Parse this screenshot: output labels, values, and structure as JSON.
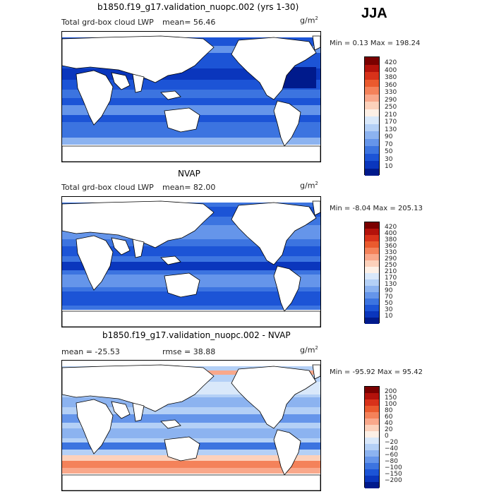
{
  "season": "JJA",
  "panels": [
    {
      "title": "b1850.f19_g17.validation_nuopc.002 (yrs 1-30)",
      "field": "Total grd-box cloud LWP",
      "stat_left": "mean=  56.46",
      "stat_right": "",
      "units": "g/m",
      "units_exp": "2",
      "minmax": "Min =   0.13 Max = 198.24",
      "colorbar": {
        "labels": [
          "420",
          "400",
          "380",
          "360",
          "330",
          "290",
          "250",
          "210",
          "170",
          "130",
          "90",
          "70",
          "50",
          "30",
          "10"
        ],
        "colors": [
          "#7a0000",
          "#b3120b",
          "#d8321a",
          "#ea5a2e",
          "#f4825a",
          "#f9a88b",
          "#fcd1bb",
          "#fdf0e6",
          "#d9e8fa",
          "#b4d0f6",
          "#8cb3f0",
          "#6595ea",
          "#3c74e0",
          "#1c54d6",
          "#0a36bd",
          "#001a8c"
        ]
      },
      "map": {
        "ocean_levels": [
          0.65,
          0.35,
          0.75,
          0.5,
          0.8
        ]
      }
    },
    {
      "title": "NVAP",
      "field": "Total grd-box cloud LWP",
      "stat_left": "mean=  82.00",
      "stat_right": "",
      "units": "g/m",
      "units_exp": "2",
      "minmax": "Min =  -8.04 Max = 205.13",
      "colorbar": {
        "labels": [
          "420",
          "400",
          "380",
          "360",
          "330",
          "290",
          "250",
          "210",
          "170",
          "130",
          "90",
          "70",
          "50",
          "30",
          "10"
        ],
        "colors": [
          "#7a0000",
          "#b3120b",
          "#d8321a",
          "#ea5a2e",
          "#f4825a",
          "#f9a88b",
          "#fcd1bb",
          "#fdf0e6",
          "#d9e8fa",
          "#b4d0f6",
          "#8cb3f0",
          "#6595ea",
          "#3c74e0",
          "#1c54d6",
          "#0a36bd",
          "#001a8c"
        ]
      },
      "map": {
        "ocean_levels": [
          0.55,
          0.45,
          0.6,
          0.4,
          0.5
        ]
      }
    },
    {
      "title": "b1850.f19_g17.validation_nuopc.002 - NVAP",
      "field": "",
      "stat_left": "mean = -25.53",
      "stat_right": "rmse =  38.88",
      "units": "g/m",
      "units_exp": "2",
      "minmax": "Min = -95.92 Max =  95.42",
      "colorbar": {
        "labels": [
          "200",
          "150",
          "100",
          "80",
          "60",
          "40",
          "20",
          "0",
          "−20",
          "−40",
          "−60",
          "−80",
          "−100",
          "−150",
          "−200"
        ],
        "colors": [
          "#7a0000",
          "#b3120b",
          "#d8321a",
          "#ea5a2e",
          "#f4825a",
          "#f9a88b",
          "#fcd1bb",
          "#fdf0e6",
          "#d9e8fa",
          "#b4d0f6",
          "#8cb3f0",
          "#6595ea",
          "#3c74e0",
          "#1c54d6",
          "#0a36bd",
          "#001a8c"
        ]
      },
      "map": {
        "ocean_levels": [
          0.3,
          0.2,
          0.35,
          0.25,
          0.3
        ]
      }
    }
  ]
}
